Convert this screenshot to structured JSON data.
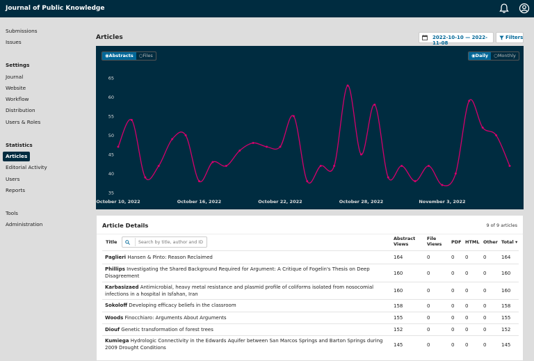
{
  "app": {
    "title": "Journal of Public Knowledge"
  },
  "sidebar": {
    "top_items": [
      {
        "label": "Submissions"
      },
      {
        "label": "Issues"
      }
    ],
    "settings_heading": "Settings",
    "settings_items": [
      {
        "label": "Journal"
      },
      {
        "label": "Website"
      },
      {
        "label": "Workflow"
      },
      {
        "label": "Distribution"
      },
      {
        "label": "Users & Roles"
      }
    ],
    "statistics_heading": "Statistics",
    "statistics_items": [
      {
        "label": "Articles",
        "active": true
      },
      {
        "label": "Editorial Activity"
      },
      {
        "label": "Users"
      },
      {
        "label": "Reports"
      }
    ],
    "bottom_items": [
      {
        "label": "Tools"
      },
      {
        "label": "Administration"
      }
    ]
  },
  "header": {
    "title": "Articles",
    "date_range": "2022-10-10 — 2022-11-08",
    "filters_label": "Filters"
  },
  "chart_toggles": {
    "type_options": [
      "Abstracts",
      "Files"
    ],
    "type_selected": "Abstracts",
    "interval_options": [
      "Daily",
      "Monthly"
    ],
    "interval_selected": "Daily"
  },
  "chart_data": {
    "type": "line",
    "title": "",
    "xlabel": "",
    "ylabel": "",
    "ylim": [
      35,
      65
    ],
    "yticks": [
      35,
      40,
      45,
      50,
      55,
      60,
      65
    ],
    "x_tick_labels": [
      "October 10, 2022",
      "October 16, 2022",
      "October 22, 2022",
      "October 28, 2022",
      "November  3, 2022"
    ],
    "x": [
      "2022-10-10",
      "2022-10-11",
      "2022-10-12",
      "2022-10-13",
      "2022-10-14",
      "2022-10-15",
      "2022-10-16",
      "2022-10-17",
      "2022-10-18",
      "2022-10-19",
      "2022-10-20",
      "2022-10-21",
      "2022-10-22",
      "2022-10-23",
      "2022-10-24",
      "2022-10-25",
      "2022-10-26",
      "2022-10-27",
      "2022-10-28",
      "2022-10-29",
      "2022-10-30",
      "2022-10-31",
      "2022-11-01",
      "2022-11-02",
      "2022-11-03",
      "2022-11-04",
      "2022-11-05",
      "2022-11-06",
      "2022-11-07",
      "2022-11-08"
    ],
    "series": [
      {
        "values": [
          47,
          54,
          39,
          42,
          49,
          50,
          38,
          43,
          42,
          46,
          48,
          47,
          47,
          55,
          38,
          42,
          42,
          63,
          45,
          58,
          39,
          42,
          38,
          42,
          37,
          40,
          59,
          52,
          50,
          42
        ]
      }
    ],
    "grid": false,
    "color": "#d5006c"
  },
  "details": {
    "title": "Article Details",
    "count": "9 of 9 articles",
    "columns": {
      "title": "Title",
      "abstract": "Abstract Views",
      "file": "File Views",
      "pdf": "PDF",
      "html": "HTML",
      "other": "Other",
      "total": "Total ▾"
    },
    "search_placeholder": "Search by title, author and ID",
    "rows": [
      {
        "author": "Paglieri",
        "title": "Hansen & Pinto: Reason Reclaimed",
        "abstract": "164",
        "file": "0",
        "pdf": "0",
        "html": "0",
        "other": "0",
        "total": "164"
      },
      {
        "author": "Phillips",
        "title": "Investigating the Shared Background Required for Argument: A Critique of Fogelin's Thesis on Deep Disagreement",
        "abstract": "160",
        "file": "0",
        "pdf": "0",
        "html": "0",
        "other": "0",
        "total": "160"
      },
      {
        "author": "Karbasizaed",
        "title": "Antimicrobial, heavy metal resistance and plasmid profile of coliforms isolated from nosocomial infections in a hospital in Isfahan, Iran",
        "abstract": "160",
        "file": "0",
        "pdf": "0",
        "html": "0",
        "other": "0",
        "total": "160"
      },
      {
        "author": "Sokoloff",
        "title": "Developing efficacy beliefs in the classroom",
        "abstract": "158",
        "file": "0",
        "pdf": "0",
        "html": "0",
        "other": "0",
        "total": "158"
      },
      {
        "author": "Woods",
        "title": "Finocchiaro: Arguments About Arguments",
        "abstract": "155",
        "file": "0",
        "pdf": "0",
        "html": "0",
        "other": "0",
        "total": "155"
      },
      {
        "author": "Diouf",
        "title": "Genetic transformation of forest trees",
        "abstract": "152",
        "file": "0",
        "pdf": "0",
        "html": "0",
        "other": "0",
        "total": "152"
      },
      {
        "author": "Kumiega",
        "title": "Hydrologic Connectivity in the Edwards Aquifer between San Marcos Springs and Barton Springs during 2009 Drought Conditions",
        "abstract": "145",
        "file": "0",
        "pdf": "0",
        "html": "0",
        "other": "0",
        "total": "145"
      }
    ]
  }
}
